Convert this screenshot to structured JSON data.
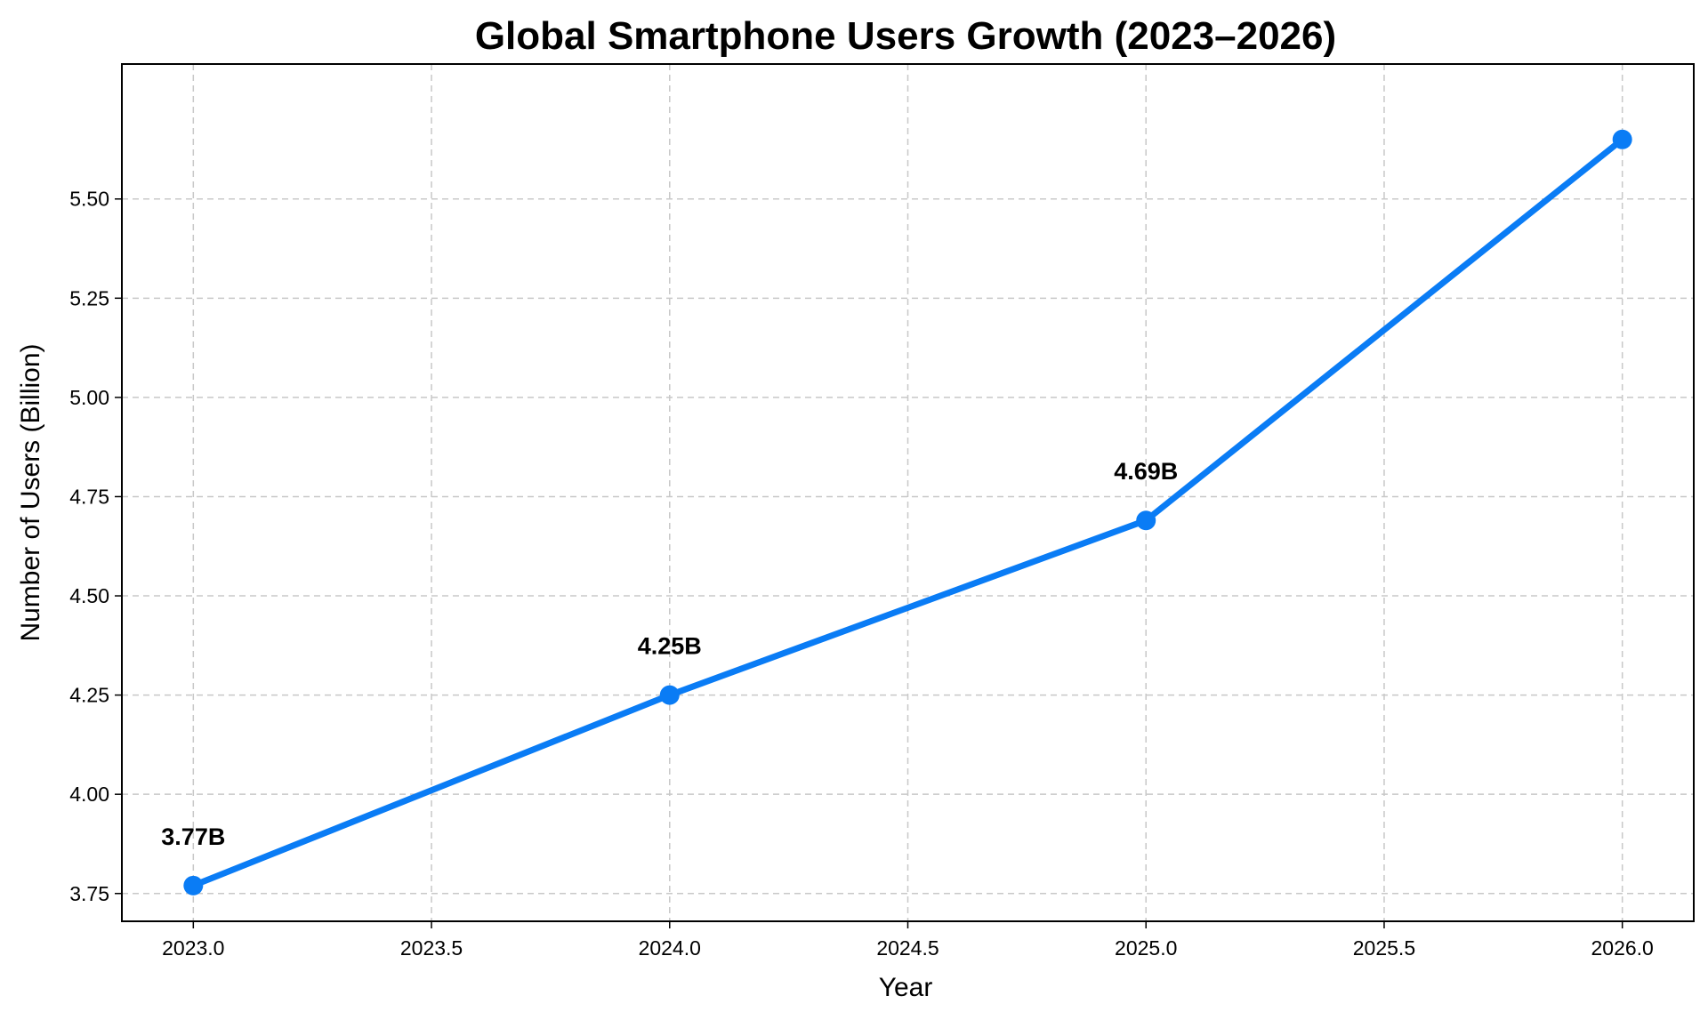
{
  "chart_data": {
    "type": "line",
    "title": "Global Smartphone Users Growth (2023–2026)",
    "xlabel": "Year",
    "ylabel": "Number of Users (Billion)",
    "xlim": [
      2022.85,
      2026.15
    ],
    "ylim": [
      3.68,
      5.84
    ],
    "x_ticks": [
      2023.0,
      2023.5,
      2024.0,
      2024.5,
      2025.0,
      2025.5,
      2026.0
    ],
    "x_tick_labels": [
      "2023.0",
      "2023.5",
      "2024.0",
      "2024.5",
      "2025.0",
      "2025.5",
      "2026.0"
    ],
    "y_ticks": [
      3.75,
      4.0,
      4.25,
      4.5,
      4.75,
      5.0,
      5.25,
      5.5
    ],
    "y_tick_labels": [
      "3.75",
      "4.00",
      "4.25",
      "4.50",
      "4.75",
      "5.00",
      "5.25",
      "5.50"
    ],
    "grid": true,
    "grid_style": "dashed",
    "series": [
      {
        "x": [
          2023,
          2024,
          2025,
          2026
        ],
        "values": [
          3.77,
          4.25,
          4.69,
          5.65
        ],
        "color": "#0a7cf5",
        "marker": "circle",
        "data_labels": [
          "3.77B",
          "4.25B",
          "4.69B",
          ""
        ]
      }
    ]
  }
}
